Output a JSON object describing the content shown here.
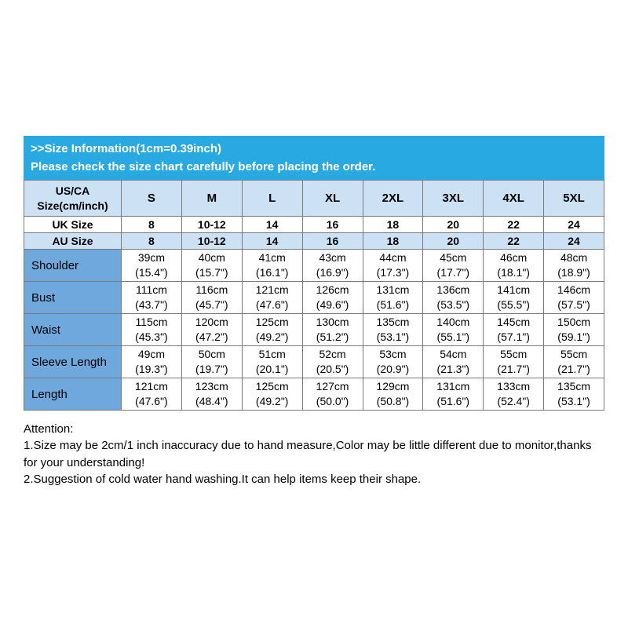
{
  "banner": {
    "line1": ">>Size Information(1cm=0.39inch)",
    "line2": "Please check the size chart carefully before placing the order."
  },
  "colors": {
    "banner_bg": "#29a9e1",
    "header_bg": "#cde1f5",
    "label_bg": "#6fa8dc",
    "border": "#7a7a7a"
  },
  "table": {
    "corner_label": "US/CA\nSize(cm/inch)",
    "size_columns": [
      "S",
      "M",
      "L",
      "XL",
      "2XL",
      "3XL",
      "4XL",
      "5XL"
    ],
    "size_rows": [
      {
        "label": "UK Size",
        "values": [
          "8",
          "10-12",
          "14",
          "16",
          "18",
          "20",
          "22",
          "24"
        ]
      },
      {
        "label": "AU Size",
        "values": [
          "8",
          "10-12",
          "14",
          "16",
          "18",
          "20",
          "22",
          "24"
        ]
      }
    ],
    "measure_rows": [
      {
        "label": "Shoulder",
        "values": [
          "39cm\n(15.4\")",
          "40cm\n(15.7\")",
          "41cm\n(16.1\")",
          "43cm\n(16.9\")",
          "44cm\n(17.3\")",
          "45cm\n(17.7\")",
          "46cm\n(18.1\")",
          "48cm\n(18.9\")"
        ]
      },
      {
        "label": "Bust",
        "values": [
          "111cm\n(43.7\")",
          "116cm\n(45.7\")",
          "121cm\n(47.6\")",
          "126cm\n(49.6\")",
          "131cm\n(51.6\")",
          "136cm\n(53.5\")",
          "141cm\n(55.5\")",
          "146cm\n(57.5\")"
        ]
      },
      {
        "label": "Waist",
        "values": [
          "115cm\n(45.3\")",
          "120cm\n(47.2\")",
          "125cm\n(49.2\")",
          "130cm\n(51.2\")",
          "135cm\n(53.1\")",
          "140cm\n(55.1\")",
          "145cm\n(57.1\")",
          "150cm\n(59.1\")"
        ]
      },
      {
        "label": "Sleeve Length",
        "values": [
          "49cm\n(19.3\")",
          "50cm\n(19.7\")",
          "51cm\n(20.1\")",
          "52cm\n(20.5\")",
          "53cm\n(20.9\")",
          "54cm\n(21.3\")",
          "55cm\n(21.7\")",
          "55cm\n(21.7\")"
        ]
      },
      {
        "label": "Length",
        "values": [
          "121cm\n(47.6\")",
          "123cm\n(48.4\")",
          "125cm\n(49.2\")",
          "127cm\n(50.0\")",
          "129cm\n(50.8\")",
          "131cm\n(51.6\")",
          "133cm\n(52.4\")",
          "135cm\n(53.1\")"
        ]
      }
    ]
  },
  "attention": {
    "title": "Attention:",
    "notes": [
      "1.Size may be 2cm/1 inch inaccuracy due to hand measure,Color may be little different due to monitor,thanks for your understanding!",
      "2.Suggestion of cold water hand washing.It can help items keep their shape."
    ]
  }
}
